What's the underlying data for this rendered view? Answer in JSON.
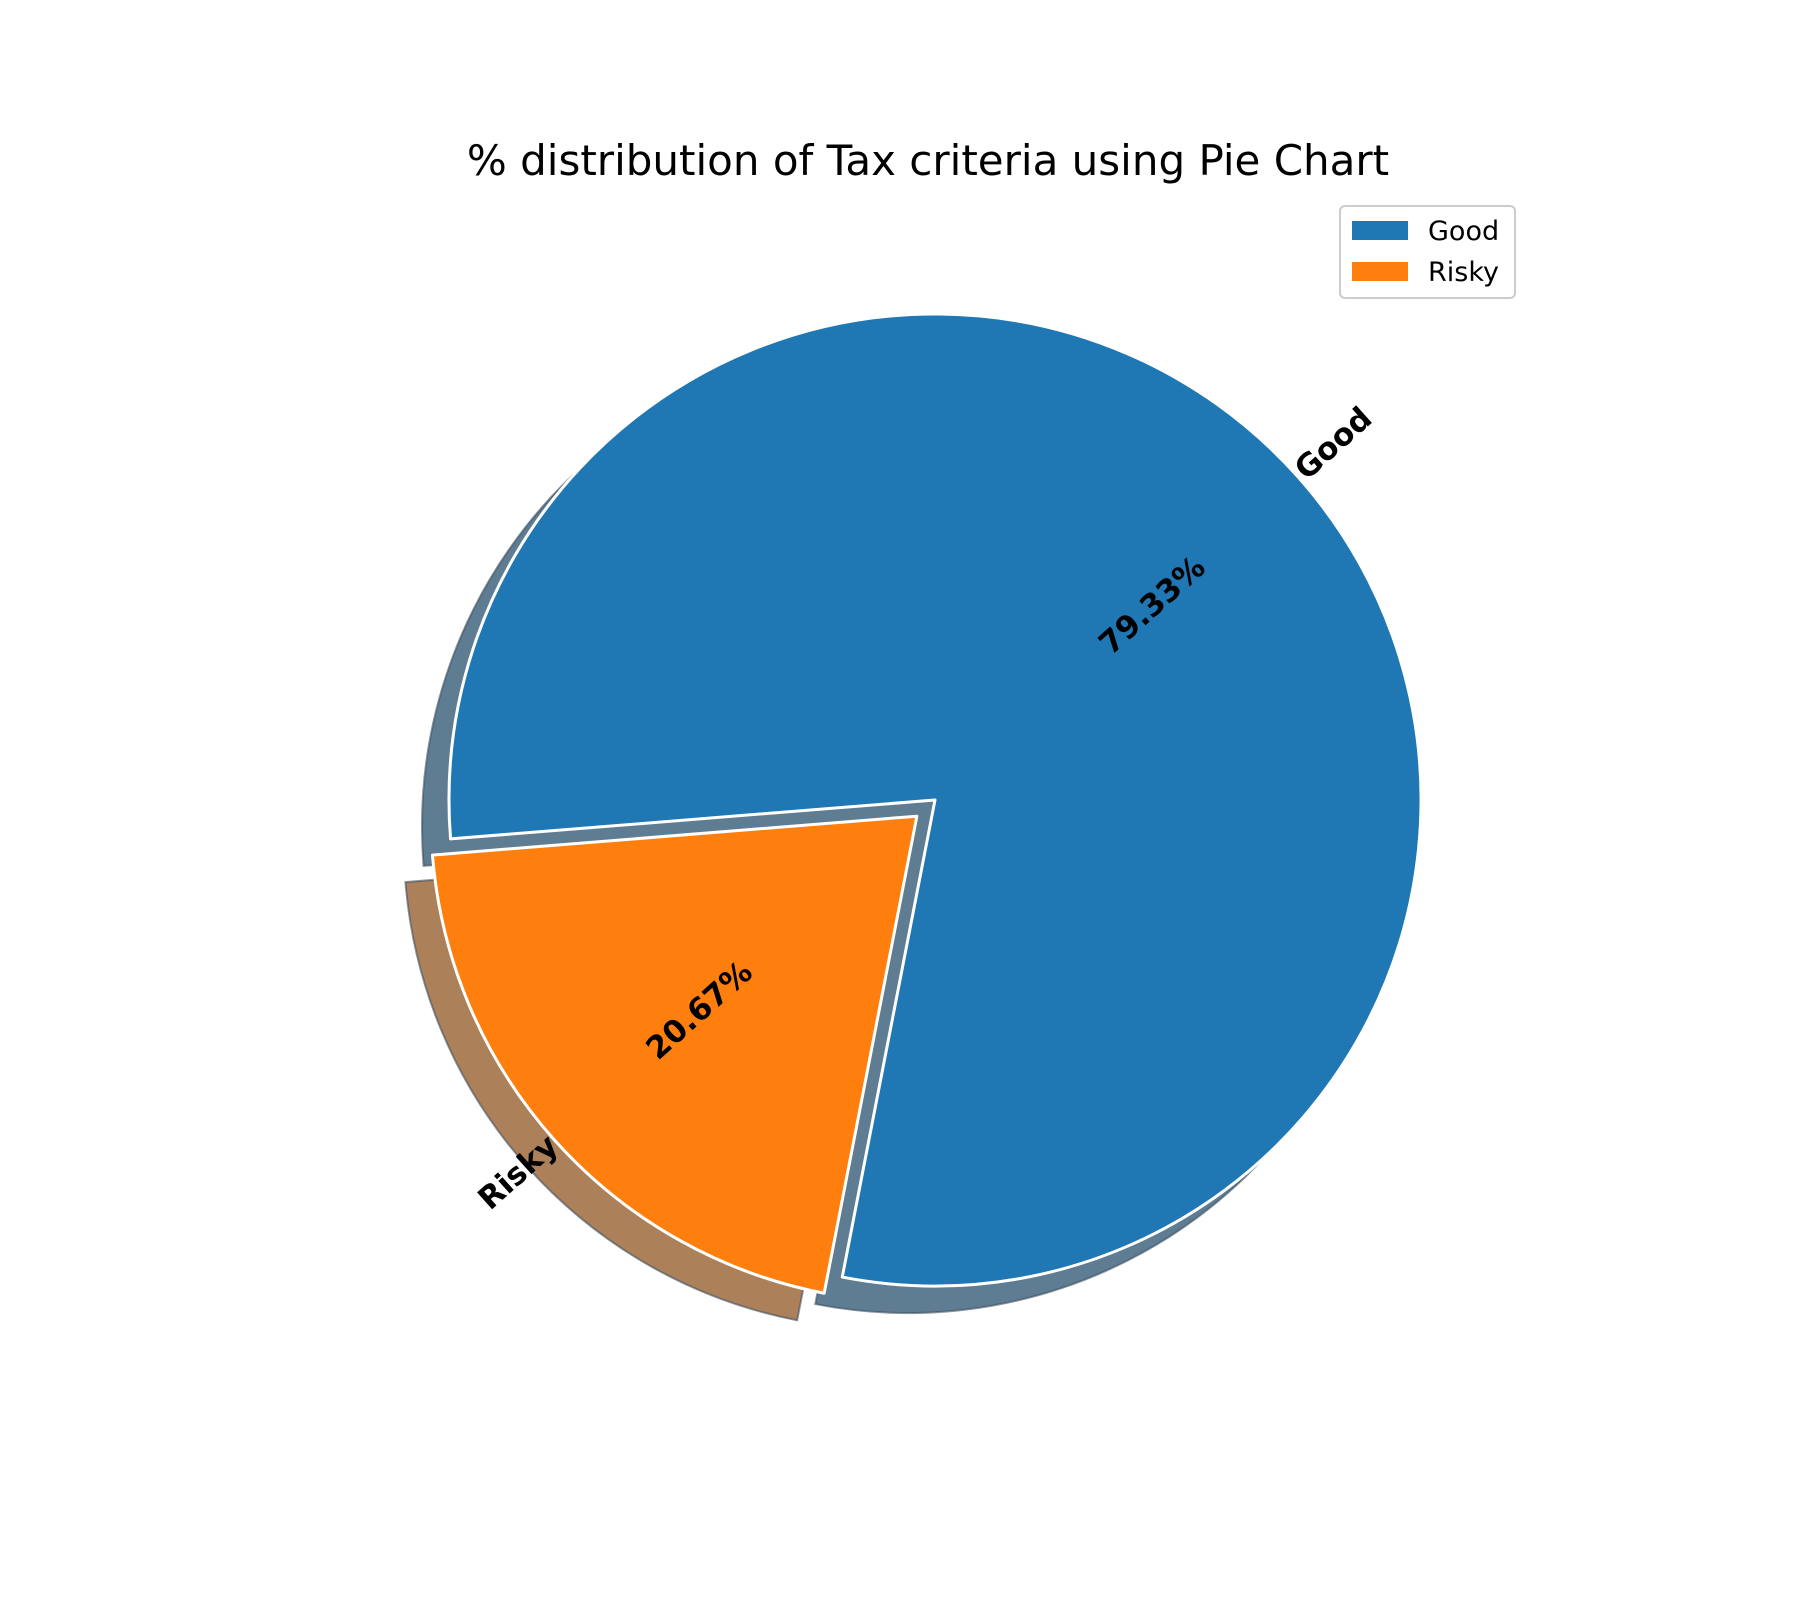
{
  "chart_data": {
    "type": "pie",
    "title": "% distribution of Tax criteria using Pie Chart",
    "slices": [
      {
        "label": "Good",
        "value": 79.33,
        "pct_label": "79.33%",
        "color": "#1f77b4"
      },
      {
        "label": "Risky",
        "value": 20.67,
        "pct_label": "20.67%",
        "color": "#ff7f0e"
      }
    ],
    "shadow": true,
    "explode": [
      0,
      0.05
    ],
    "legend": {
      "placement": "top-right",
      "entries": [
        "Good",
        "Risky"
      ]
    }
  }
}
